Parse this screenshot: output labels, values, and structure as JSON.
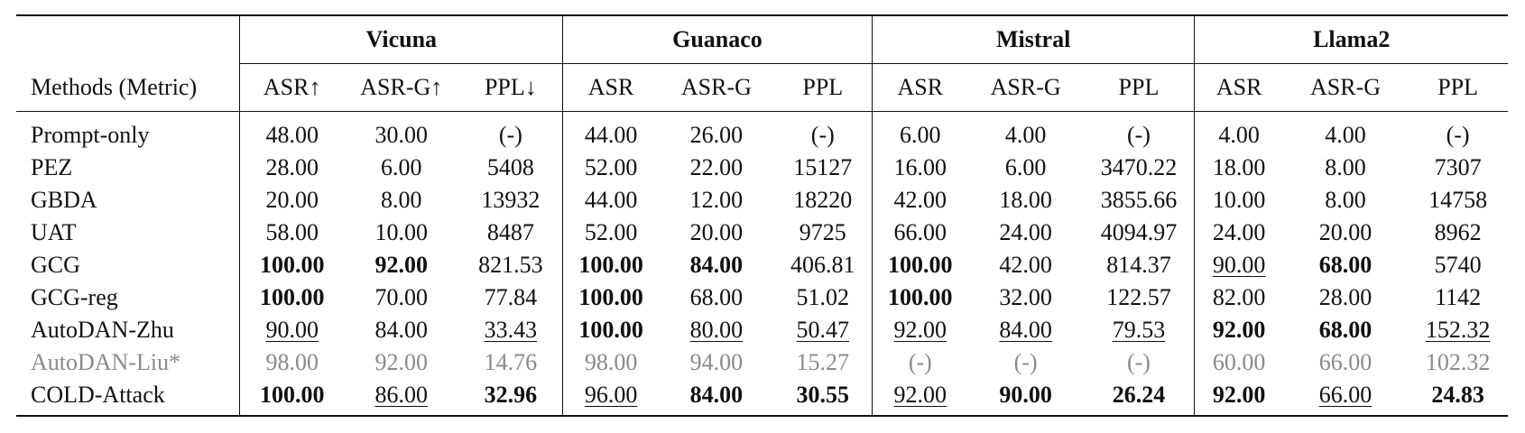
{
  "table": {
    "groups": [
      "Vicuna",
      "Guanaco",
      "Mistral",
      "Llama2"
    ],
    "method_header": "Methods (Metric)",
    "columns": [
      "ASR↑",
      "ASR-G↑",
      "PPL↓",
      "ASR",
      "ASR-G",
      "PPL",
      "ASR",
      "ASR-G",
      "PPL",
      "ASR",
      "ASR-G",
      "PPL"
    ],
    "rows": [
      {
        "method": "Prompt-only",
        "gray": false,
        "cells": [
          {
            "v": "48.00"
          },
          {
            "v": "30.00"
          },
          {
            "v": "(-)"
          },
          {
            "v": "44.00"
          },
          {
            "v": "26.00"
          },
          {
            "v": "(-)"
          },
          {
            "v": "6.00"
          },
          {
            "v": "4.00"
          },
          {
            "v": "(-)"
          },
          {
            "v": "4.00"
          },
          {
            "v": "4.00"
          },
          {
            "v": "(-)"
          }
        ]
      },
      {
        "method": "PEZ",
        "gray": false,
        "cells": [
          {
            "v": "28.00"
          },
          {
            "v": "6.00"
          },
          {
            "v": "5408"
          },
          {
            "v": "52.00"
          },
          {
            "v": "22.00"
          },
          {
            "v": "15127"
          },
          {
            "v": "16.00"
          },
          {
            "v": "6.00"
          },
          {
            "v": "3470.22"
          },
          {
            "v": "18.00"
          },
          {
            "v": "8.00"
          },
          {
            "v": "7307"
          }
        ]
      },
      {
        "method": "GBDA",
        "gray": false,
        "cells": [
          {
            "v": "20.00"
          },
          {
            "v": "8.00"
          },
          {
            "v": "13932"
          },
          {
            "v": "44.00"
          },
          {
            "v": "12.00"
          },
          {
            "v": "18220"
          },
          {
            "v": "42.00"
          },
          {
            "v": "18.00"
          },
          {
            "v": "3855.66"
          },
          {
            "v": "10.00"
          },
          {
            "v": "8.00"
          },
          {
            "v": "14758"
          }
        ]
      },
      {
        "method": "UAT",
        "gray": false,
        "cells": [
          {
            "v": "58.00"
          },
          {
            "v": "10.00"
          },
          {
            "v": "8487"
          },
          {
            "v": "52.00"
          },
          {
            "v": "20.00"
          },
          {
            "v": "9725"
          },
          {
            "v": "66.00"
          },
          {
            "v": "24.00"
          },
          {
            "v": "4094.97"
          },
          {
            "v": "24.00"
          },
          {
            "v": "20.00"
          },
          {
            "v": "8962"
          }
        ]
      },
      {
        "method": "GCG",
        "gray": false,
        "cells": [
          {
            "v": "100.00",
            "b": true
          },
          {
            "v": "92.00",
            "b": true
          },
          {
            "v": "821.53"
          },
          {
            "v": "100.00",
            "b": true
          },
          {
            "v": "84.00",
            "b": true
          },
          {
            "v": "406.81"
          },
          {
            "v": "100.00",
            "b": true
          },
          {
            "v": "42.00"
          },
          {
            "v": "814.37"
          },
          {
            "v": "90.00",
            "u": true
          },
          {
            "v": "68.00",
            "b": true
          },
          {
            "v": "5740"
          }
        ]
      },
      {
        "method": "GCG-reg",
        "gray": false,
        "cells": [
          {
            "v": "100.00",
            "b": true
          },
          {
            "v": "70.00"
          },
          {
            "v": "77.84"
          },
          {
            "v": "100.00",
            "b": true
          },
          {
            "v": "68.00"
          },
          {
            "v": "51.02"
          },
          {
            "v": "100.00",
            "b": true
          },
          {
            "v": "32.00"
          },
          {
            "v": "122.57"
          },
          {
            "v": "82.00"
          },
          {
            "v": "28.00"
          },
          {
            "v": "1142"
          }
        ]
      },
      {
        "method": "AutoDAN-Zhu",
        "gray": false,
        "cells": [
          {
            "v": "90.00",
            "u": true
          },
          {
            "v": "84.00"
          },
          {
            "v": "33.43",
            "u": true
          },
          {
            "v": "100.00",
            "b": true
          },
          {
            "v": "80.00",
            "u": true
          },
          {
            "v": "50.47",
            "u": true
          },
          {
            "v": "92.00",
            "u": true
          },
          {
            "v": "84.00",
            "u": true
          },
          {
            "v": "79.53",
            "u": true
          },
          {
            "v": "92.00",
            "b": true
          },
          {
            "v": "68.00",
            "b": true
          },
          {
            "v": "152.32",
            "u": true
          }
        ]
      },
      {
        "method": "AutoDAN-Liu*",
        "gray": true,
        "cells": [
          {
            "v": "98.00"
          },
          {
            "v": "92.00"
          },
          {
            "v": "14.76"
          },
          {
            "v": "98.00"
          },
          {
            "v": "94.00"
          },
          {
            "v": "15.27"
          },
          {
            "v": "(-)"
          },
          {
            "v": "(-)"
          },
          {
            "v": "(-)"
          },
          {
            "v": "60.00"
          },
          {
            "v": "66.00"
          },
          {
            "v": "102.32"
          }
        ]
      },
      {
        "method": "COLD-Attack",
        "gray": false,
        "cells": [
          {
            "v": "100.00",
            "b": true
          },
          {
            "v": "86.00",
            "u": true
          },
          {
            "v": "32.96",
            "b": true
          },
          {
            "v": "96.00",
            "u": true
          },
          {
            "v": "84.00",
            "b": true
          },
          {
            "v": "30.55",
            "b": true
          },
          {
            "v": "92.00",
            "u": true
          },
          {
            "v": "90.00",
            "b": true
          },
          {
            "v": "26.24",
            "b": true
          },
          {
            "v": "92.00",
            "b": true
          },
          {
            "v": "66.00",
            "u": true
          },
          {
            "v": "24.83",
            "b": true
          }
        ]
      }
    ]
  }
}
